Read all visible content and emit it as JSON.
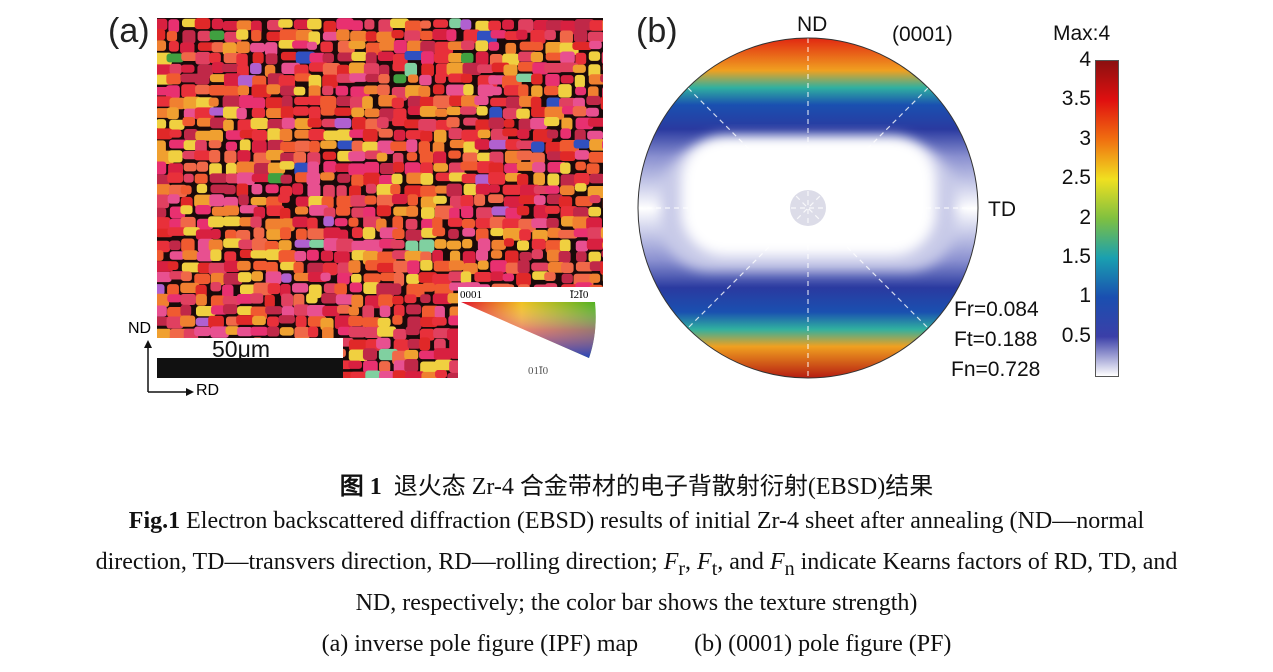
{
  "panel_a": {
    "label": "(a)",
    "scale_bar": "50μm",
    "axis_nd": "ND",
    "axis_rd": "RD",
    "ipf_legend": {
      "corner_0001": "0001",
      "corner_1210": "Ī2Ī0",
      "corner_0110": "01Ī0"
    }
  },
  "panel_b": {
    "label": "(b)",
    "plane": "(0001)",
    "nd_label": "ND",
    "td_label": "TD",
    "factors": [
      "Fr=0.084",
      "Ft=0.188",
      "Fn=0.728"
    ],
    "colorbar": {
      "title": "Max:4",
      "ticks": [
        "4",
        "3.5",
        "3",
        "2.5",
        "2",
        "1.5",
        "1",
        "0.5"
      ],
      "range": [
        0,
        4
      ],
      "colormap": [
        "#ffffff",
        "#3b3fa8",
        "#1a4fb0",
        "#1aa0b0",
        "#7fc040",
        "#f0e020",
        "#f07010",
        "#e01010",
        "#8b1010"
      ]
    }
  },
  "caption": {
    "cn_prefix": "图 1",
    "cn_text": "退火态 Zr-4 合金带材的电子背散射衍射(EBSD)结果",
    "en_prefix": "Fig.1",
    "en_line1": "Electron backscattered diffraction (EBSD) results of initial Zr-4 sheet after annealing (ND—normal",
    "en_line2a": "direction, TD—transvers direction, RD—rolling direction; ",
    "fr": "F",
    "fr_sub": "r",
    "ft": "F",
    "ft_sub": "t",
    "fn": "F",
    "fn_sub": "n",
    "en_line2b": " indicate Kearns factors of RD, TD, and",
    "en_line3": "ND, respectively; the color bar shows the texture strength)",
    "sub_a": "(a) inverse pole figure (IPF) map",
    "sub_b": "(b) (0001) pole figure (PF)"
  }
}
